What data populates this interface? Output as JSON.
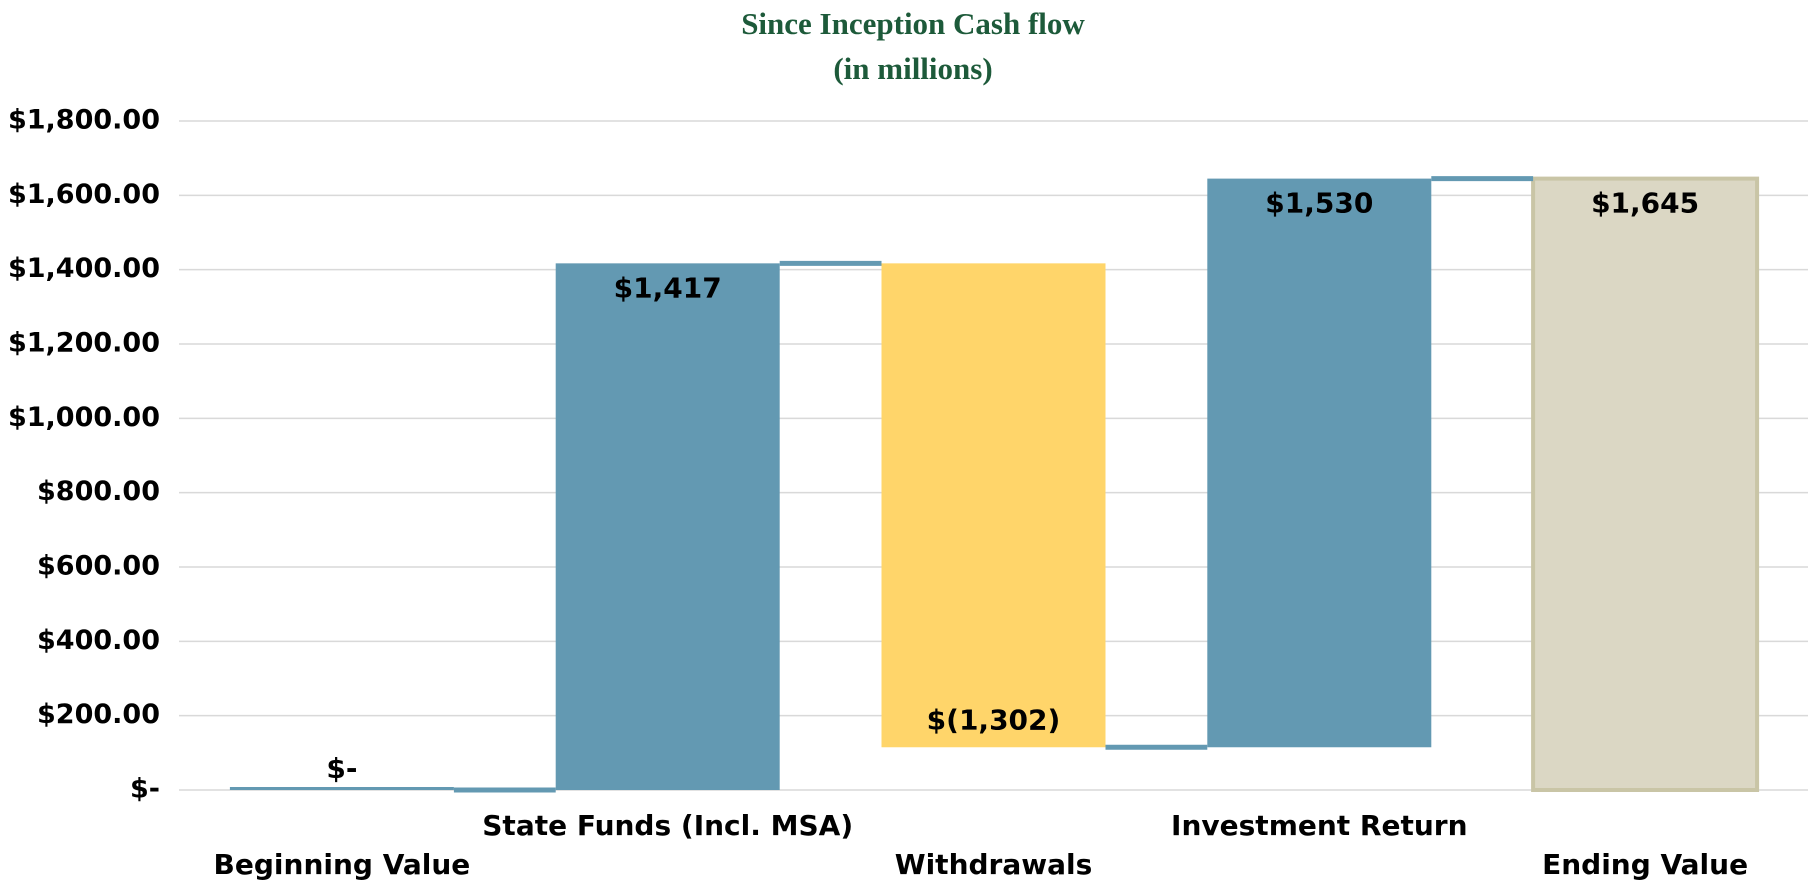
{
  "chart_data": {
    "type": "waterfall",
    "title": [
      "Since Inception Cash flow",
      "(in millions)"
    ],
    "categories": [
      "Beginning Value",
      "State Funds (Incl. MSA)",
      "Withdrawals",
      "Investment Return",
      "Ending Value"
    ],
    "values": [
      0,
      1417,
      -1302,
      1530,
      1645
    ],
    "value_labels": [
      "$-",
      "$1,417",
      "$(1,302)",
      "$1,530",
      "$1,645"
    ],
    "colors": [
      "#6399b2",
      "#6399b2",
      "#ffd56a",
      "#6399b2",
      "#dbd7c4"
    ],
    "ylim": [
      0,
      1800
    ],
    "yticks": [
      {
        "value": 0,
        "label": "$-"
      },
      {
        "value": 200,
        "label": "$200.00"
      },
      {
        "value": 400,
        "label": "$400.00"
      },
      {
        "value": 600,
        "label": "$600.00"
      },
      {
        "value": 800,
        "label": "$800.00"
      },
      {
        "value": 1000,
        "label": "$1,000.00"
      },
      {
        "value": 1200,
        "label": "$1,200.00"
      },
      {
        "value": 1400,
        "label": "$1,400.00"
      },
      {
        "value": 1600,
        "label": "$1,600.00"
      },
      {
        "value": 1800,
        "label": "$1,800.00"
      }
    ],
    "grid": true
  }
}
